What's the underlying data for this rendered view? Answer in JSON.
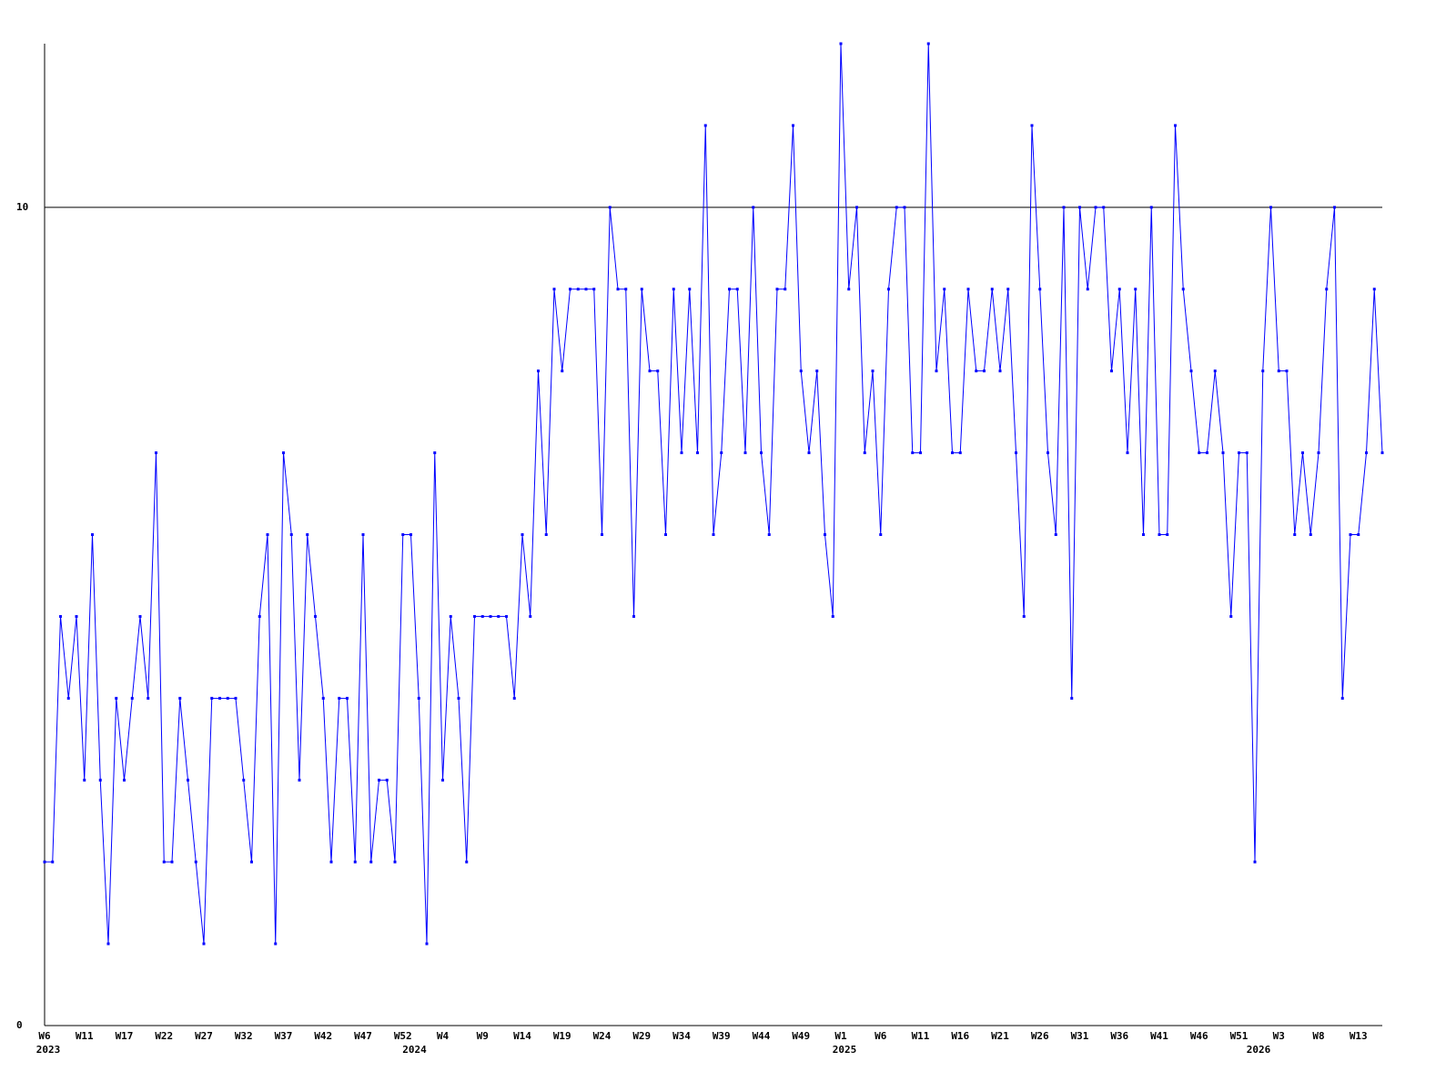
{
  "chart_data": {
    "type": "line",
    "categories": [
      "W6",
      null,
      null,
      null,
      null,
      "W11",
      null,
      null,
      null,
      null,
      "W17",
      null,
      null,
      null,
      null,
      "W22",
      null,
      null,
      null,
      null,
      "W27",
      null,
      null,
      null,
      null,
      "W32",
      null,
      null,
      null,
      null,
      "W37",
      null,
      null,
      null,
      null,
      "W42",
      null,
      null,
      null,
      null,
      "W47",
      null,
      null,
      null,
      null,
      "W52",
      null,
      null,
      null,
      null,
      "W4",
      null,
      null,
      null,
      null,
      "W9",
      null,
      null,
      null,
      null,
      "W14",
      null,
      null,
      null,
      null,
      "W19",
      null,
      null,
      null,
      null,
      "W24",
      null,
      null,
      null,
      null,
      "W29",
      null,
      null,
      null,
      null,
      "W34",
      null,
      null,
      null,
      null,
      "W39",
      null,
      null,
      null,
      null,
      "W44",
      null,
      null,
      null,
      null,
      "W49",
      null,
      null,
      null,
      null,
      "W1",
      null,
      null,
      null,
      null,
      "W6",
      null,
      null,
      null,
      null,
      "W11",
      null,
      null,
      null,
      null,
      "W16",
      null,
      null,
      null,
      null,
      "W21",
      null,
      null,
      null,
      null,
      "W26",
      null,
      null,
      null,
      null,
      "W31",
      null,
      null,
      null,
      null,
      "W36",
      null,
      null,
      null,
      null,
      "W41",
      null,
      null,
      null,
      null,
      "W46",
      null,
      null,
      null,
      null,
      "W51",
      null,
      null,
      null,
      null,
      "W3",
      null,
      null,
      null,
      null,
      "W8",
      null,
      null,
      null,
      null,
      "W13",
      null,
      null,
      null
    ],
    "year_labels": [
      "2023",
      null,
      null,
      null,
      null,
      null,
      null,
      null,
      null,
      null,
      null,
      null,
      null,
      null,
      null,
      null,
      null,
      null,
      null,
      null,
      null,
      null,
      null,
      null,
      null,
      null,
      null,
      null,
      null,
      null,
      null,
      null,
      null,
      null,
      null,
      null,
      null,
      null,
      null,
      null,
      null,
      null,
      null,
      null,
      null,
      null,
      "2024",
      null,
      null,
      null,
      null,
      null,
      null,
      null,
      null,
      null,
      null,
      null,
      null,
      null,
      null,
      null,
      null,
      null,
      null,
      null,
      null,
      null,
      null,
      null,
      null,
      null,
      null,
      null,
      null,
      null,
      null,
      null,
      null,
      null,
      null,
      null,
      null,
      null,
      null,
      null,
      null,
      null,
      null,
      null,
      null,
      null,
      null,
      null,
      null,
      null,
      null,
      null,
      null,
      null,
      "2025",
      null,
      null,
      null,
      null,
      null,
      null,
      null,
      null,
      null,
      null,
      null,
      null,
      null,
      null,
      null,
      null,
      null,
      null,
      null,
      null,
      null,
      null,
      null,
      null,
      null,
      null,
      null,
      null,
      null,
      null,
      null,
      null,
      null,
      null,
      null,
      null,
      null,
      null,
      null,
      null,
      null,
      null,
      null,
      null,
      null,
      null,
      null,
      null,
      null,
      null,
      null,
      "2026",
      null,
      null,
      null,
      null,
      null,
      null,
      null,
      null,
      null,
      null,
      null,
      null,
      null,
      null,
      null,
      null
    ],
    "series": [
      {
        "color": "#0000ff",
        "values": [
          2,
          2,
          5,
          4,
          5,
          3,
          6,
          3,
          1,
          4,
          3,
          4,
          5,
          4,
          7,
          2,
          2,
          4,
          3,
          2,
          1,
          4,
          4,
          4,
          4,
          3,
          2,
          5,
          6,
          1,
          7,
          6,
          3,
          6,
          5,
          4,
          2,
          4,
          4,
          2,
          6,
          2,
          3,
          3,
          2,
          6,
          6,
          4,
          1,
          7,
          3,
          5,
          4,
          2,
          5,
          5,
          5,
          5,
          5,
          4,
          6,
          5,
          8,
          6,
          9,
          8,
          9,
          9,
          9,
          9,
          6,
          10,
          9,
          9,
          5,
          9,
          8,
          8,
          6,
          9,
          7,
          9,
          7,
          11,
          6,
          7,
          9,
          9,
          7,
          10,
          7,
          6,
          9,
          9,
          11,
          8,
          7,
          8,
          6,
          5,
          12,
          9,
          10,
          7,
          8,
          6,
          9,
          10,
          10,
          7,
          7,
          12,
          8,
          9,
          7,
          7,
          9,
          8,
          8,
          9,
          8,
          9,
          7,
          5,
          11,
          9,
          7,
          6,
          10,
          4,
          10,
          9,
          10,
          10,
          8,
          9,
          7,
          9,
          6,
          10,
          6,
          6,
          11,
          9,
          8,
          7,
          7,
          8,
          7,
          5,
          7,
          7,
          2,
          8,
          10,
          8,
          8,
          6,
          7,
          6,
          7,
          9,
          10,
          4,
          6,
          6,
          7,
          9,
          7
        ]
      }
    ],
    "ylim": [
      0,
      12
    ],
    "yticks": [
      0,
      10
    ],
    "grid": true,
    "grid_color": "#000000"
  }
}
